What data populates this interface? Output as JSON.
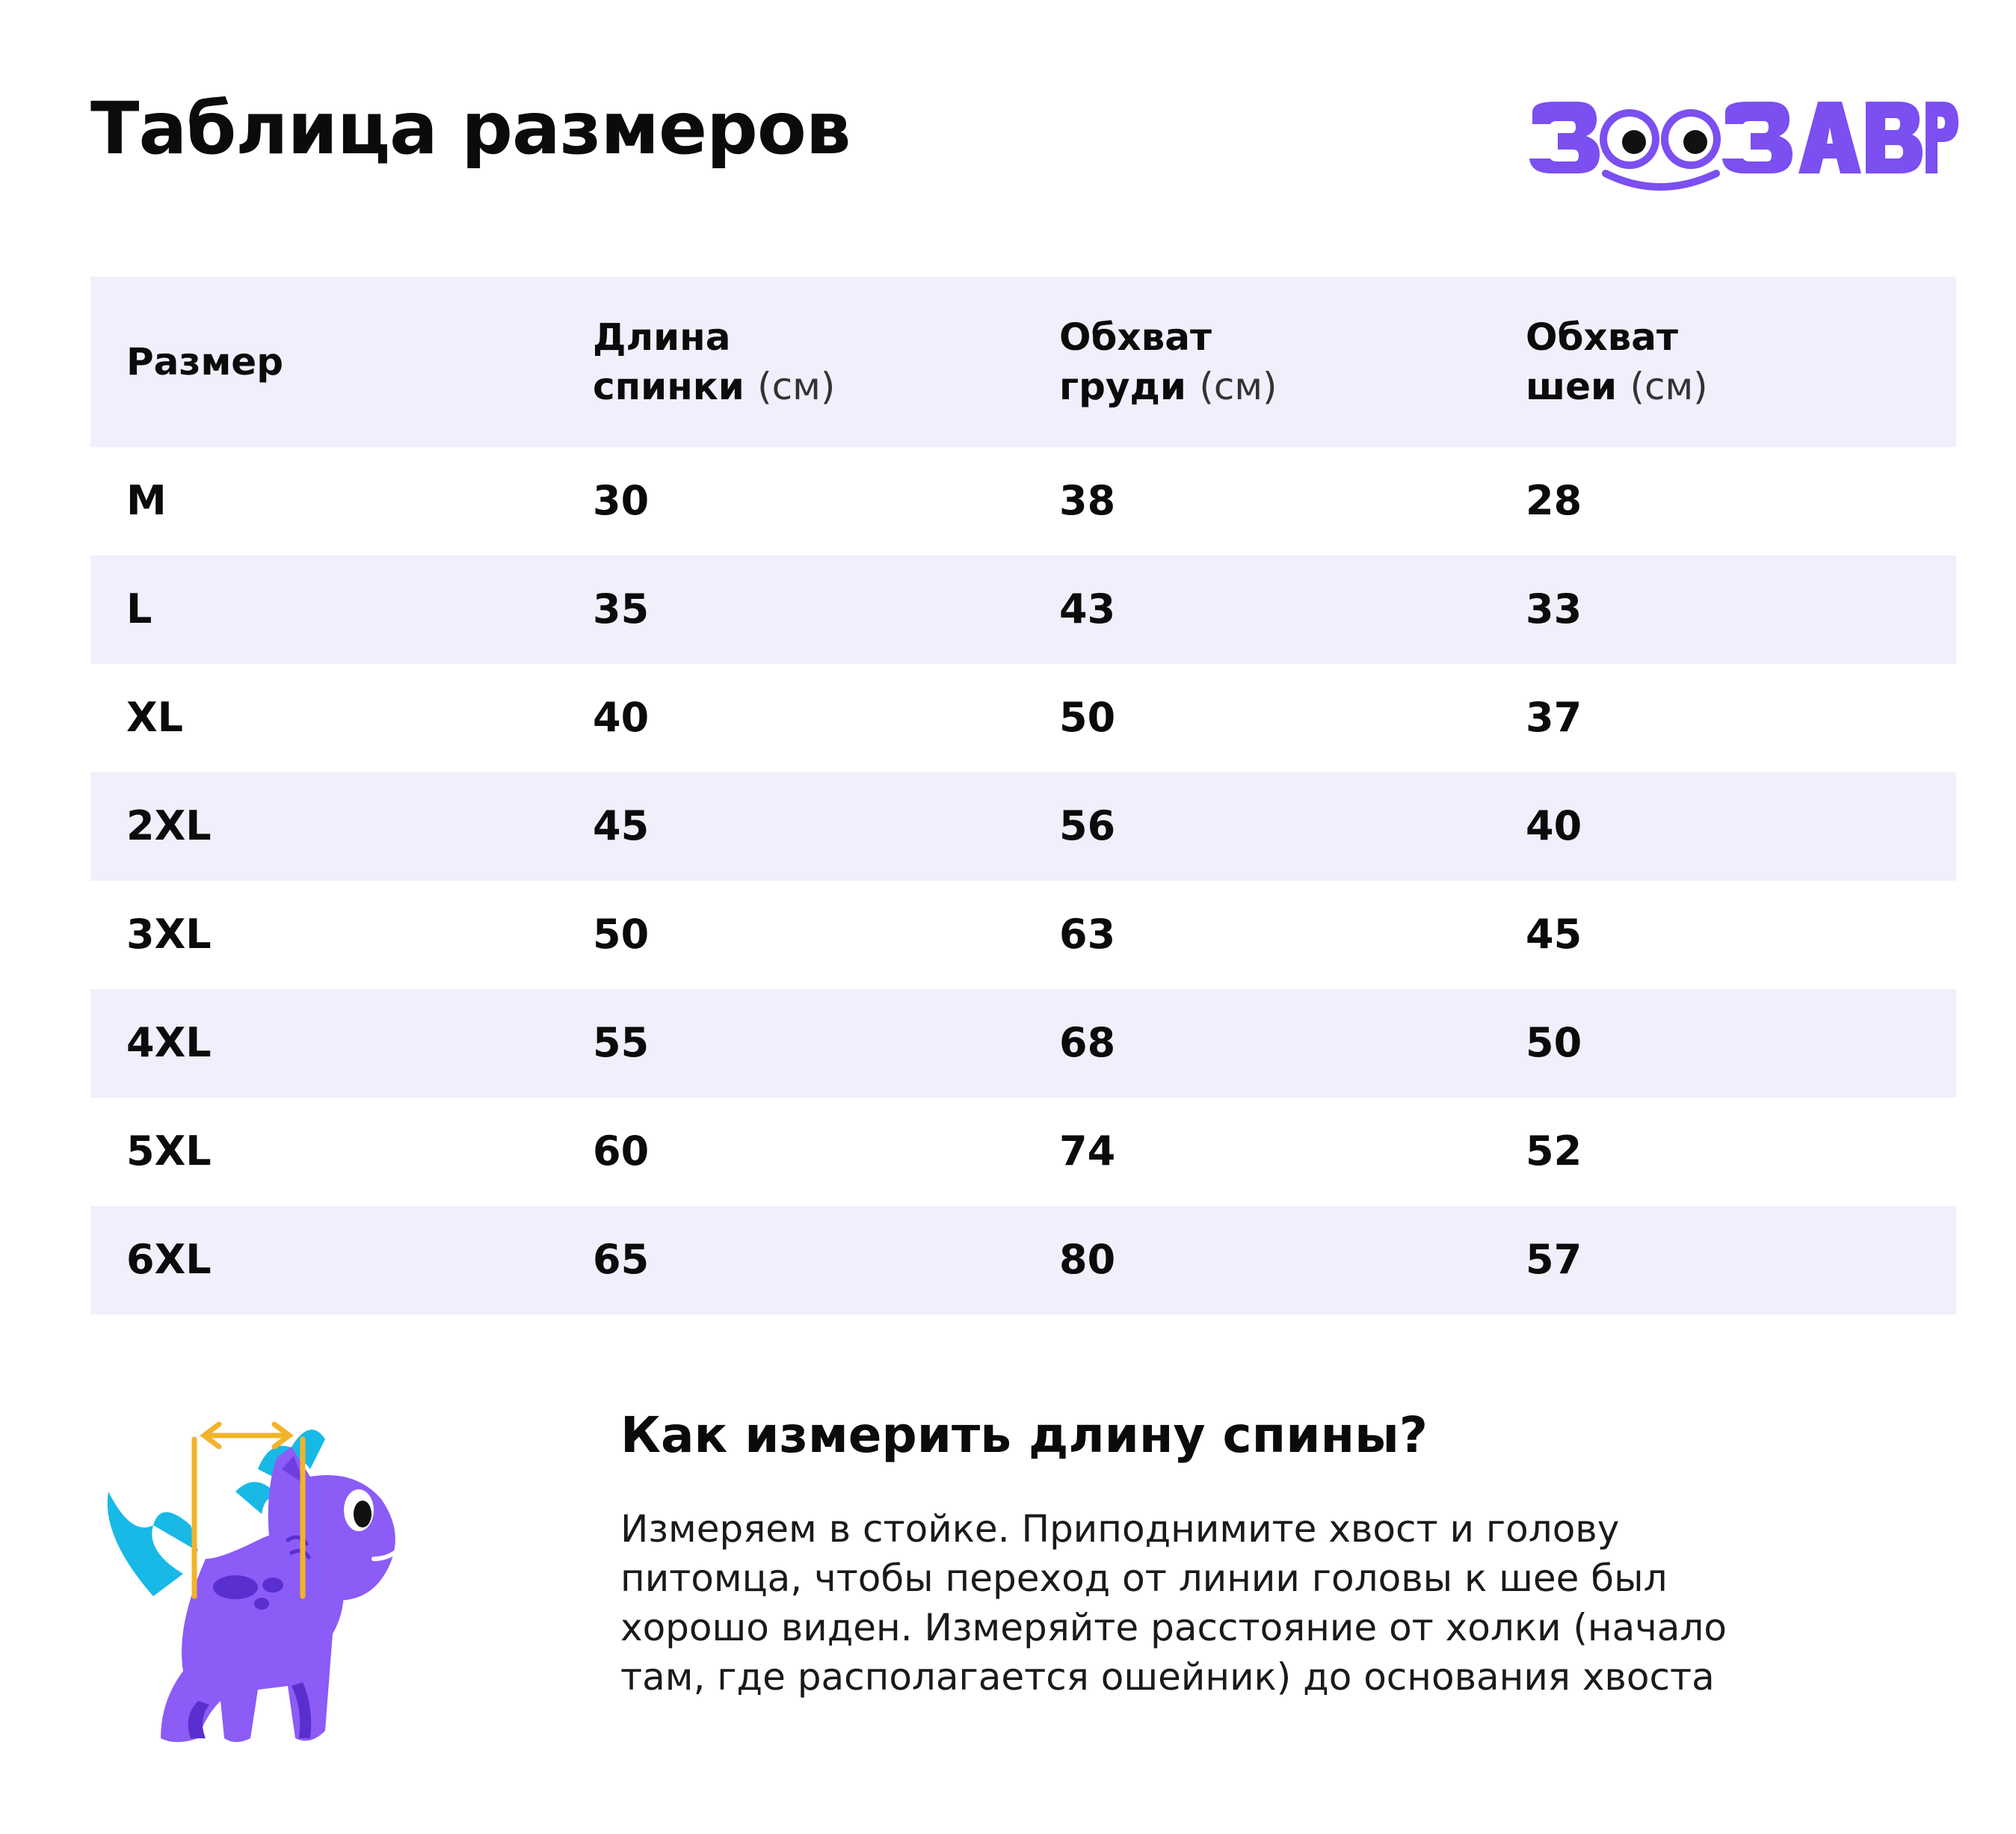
{
  "title": "Таблица размеров",
  "logo": {
    "text": "ЗООЗАВР",
    "color": "#7b4ff0"
  },
  "table": {
    "headers": [
      {
        "main": "Размер",
        "unit": ""
      },
      {
        "line1": "Длина",
        "line2": "спинки",
        "unit": "(см)"
      },
      {
        "line1": "Обхват",
        "line2": "груди",
        "unit": "(см)"
      },
      {
        "line1": "Обхват",
        "line2": "шеи",
        "unit": "(см)"
      }
    ],
    "rows": [
      [
        "M",
        "30",
        "38",
        "28"
      ],
      [
        "L",
        "35",
        "43",
        "33"
      ],
      [
        "XL",
        "40",
        "50",
        "37"
      ],
      [
        "2XL",
        "45",
        "56",
        "40"
      ],
      [
        "3XL",
        "50",
        "63",
        "45"
      ],
      [
        "4XL",
        "55",
        "68",
        "50"
      ],
      [
        "5XL",
        "60",
        "74",
        "52"
      ],
      [
        "6XL",
        "65",
        "80",
        "57"
      ]
    ]
  },
  "howto": {
    "title": "Как измерить длину спины?",
    "text": "Измеряем в стойке. Приподнимите хвост и голову питомца, чтобы переход от линии головы к шее был хорошо виден. Измеряйте расстояние от холки (начало там, где располагается ошейник) до основания хвоста"
  },
  "colors": {
    "row_shade": "#f0effc",
    "dino_body": "#8b5cf6",
    "dino_spikes": "#18b9e6",
    "measure_line": "#f2b329"
  }
}
